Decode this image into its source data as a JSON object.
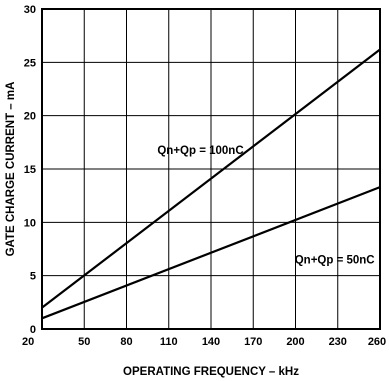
{
  "chart_data": {
    "type": "line",
    "title": "",
    "xlabel": "OPERATING FREQUENCY – kHz",
    "ylabel": "GATE CHARGE CURRENT – mA",
    "xlim": [
      20,
      260
    ],
    "ylim": [
      0,
      30
    ],
    "grid": true,
    "x_ticks": [
      20,
      50,
      80,
      110,
      140,
      170,
      200,
      230,
      260
    ],
    "y_ticks": [
      0,
      5,
      10,
      15,
      20,
      25,
      30
    ],
    "series": [
      {
        "name": "Qn+Qp = 100nC",
        "x": [
          20,
          260
        ],
        "y": [
          2.0,
          26.2
        ]
      },
      {
        "name": "Qn+Qp = 50nC",
        "x": [
          20,
          260
        ],
        "y": [
          1.0,
          13.3
        ]
      }
    ],
    "annotations": [
      {
        "text": "Qn+Qp = 100nC",
        "series": 0
      },
      {
        "text": "Qn+Qp = 50nC",
        "series": 1
      }
    ],
    "colors": {
      "line": "#000000",
      "grid": "#000000"
    }
  }
}
